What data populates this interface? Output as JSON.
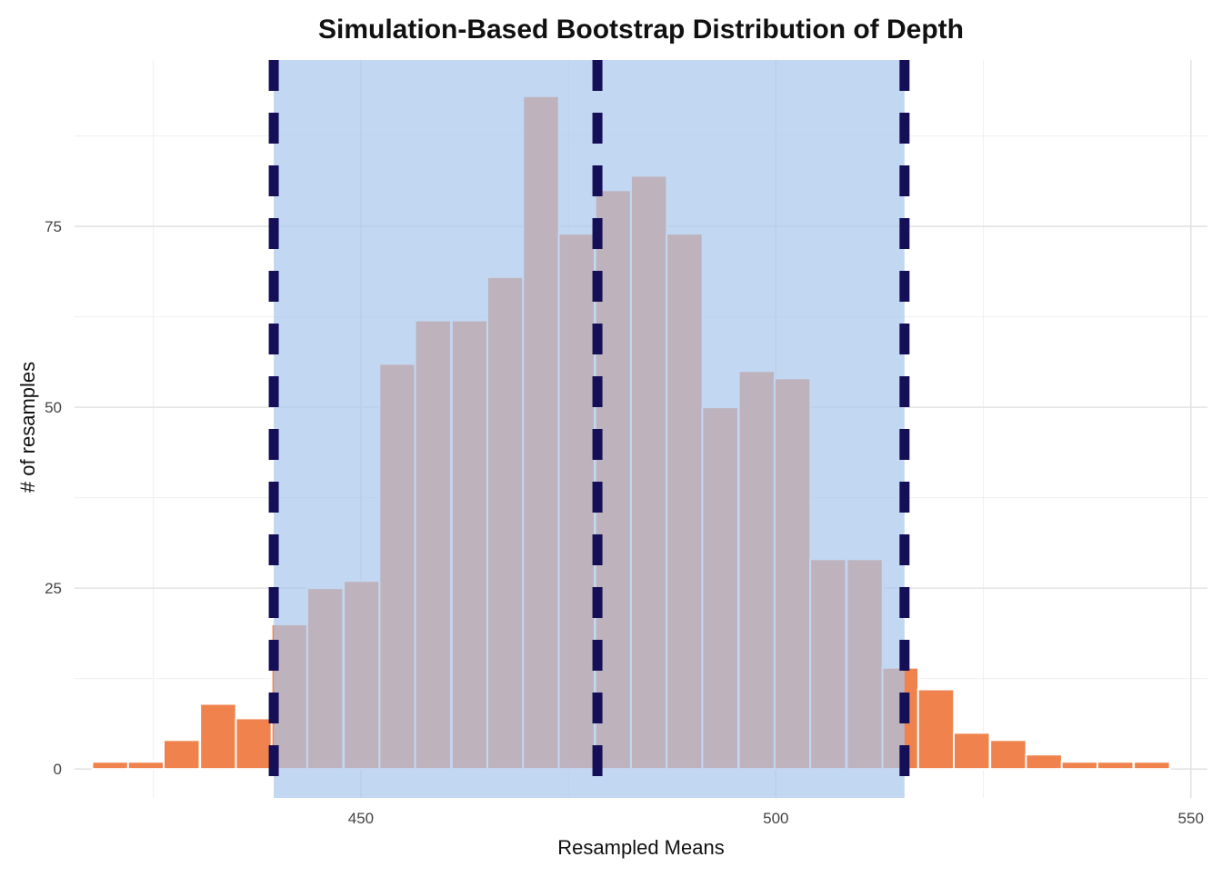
{
  "chart_data": {
    "type": "bar",
    "title": "Simulation-Based Bootstrap Distribution of Depth",
    "xlabel": "Resampled Means",
    "ylabel": "# of resamples",
    "xlim": [
      415.5,
      552
    ],
    "ylim": [
      -4,
      98
    ],
    "x_ticks": [
      450,
      500,
      550
    ],
    "y_ticks": [
      0,
      25,
      50,
      75
    ],
    "x_minor_gridlines": [
      425,
      475,
      525
    ],
    "y_minor_gridlines": [
      12.5,
      37.5,
      62.5,
      87.5
    ],
    "grid": true,
    "bin_width": 4.33,
    "bins": [
      {
        "x": 419.8,
        "count": 1
      },
      {
        "x": 424.1,
        "count": 1
      },
      {
        "x": 428.4,
        "count": 4
      },
      {
        "x": 432.8,
        "count": 9
      },
      {
        "x": 437.1,
        "count": 7
      },
      {
        "x": 441.4,
        "count": 20
      },
      {
        "x": 445.7,
        "count": 25
      },
      {
        "x": 450.1,
        "count": 26
      },
      {
        "x": 454.4,
        "count": 56
      },
      {
        "x": 458.7,
        "count": 62
      },
      {
        "x": 463.1,
        "count": 62
      },
      {
        "x": 467.4,
        "count": 68
      },
      {
        "x": 471.7,
        "count": 93
      },
      {
        "x": 476.0,
        "count": 74
      },
      {
        "x": 480.4,
        "count": 80
      },
      {
        "x": 484.7,
        "count": 82
      },
      {
        "x": 489.0,
        "count": 74
      },
      {
        "x": 493.3,
        "count": 50
      },
      {
        "x": 497.7,
        "count": 55
      },
      {
        "x": 502.0,
        "count": 54
      },
      {
        "x": 506.3,
        "count": 29
      },
      {
        "x": 510.7,
        "count": 29
      },
      {
        "x": 515.0,
        "count": 14
      },
      {
        "x": 519.3,
        "count": 11
      },
      {
        "x": 523.6,
        "count": 5
      },
      {
        "x": 528.0,
        "count": 4
      },
      {
        "x": 532.3,
        "count": 2
      },
      {
        "x": 536.6,
        "count": 1
      },
      {
        "x": 540.9,
        "count": 1
      },
      {
        "x": 545.3,
        "count": 1
      }
    ],
    "confidence_interval": {
      "lower": 439.5,
      "upper": 515.5
    },
    "point_estimate": 478.5,
    "colors": {
      "bar": "#f0834d",
      "shade": "#a8c8ec",
      "line": "#140f56",
      "grid_major": "#e3e3e3",
      "grid_minor": "#efefef",
      "bar_outline": "#ffffff"
    }
  }
}
